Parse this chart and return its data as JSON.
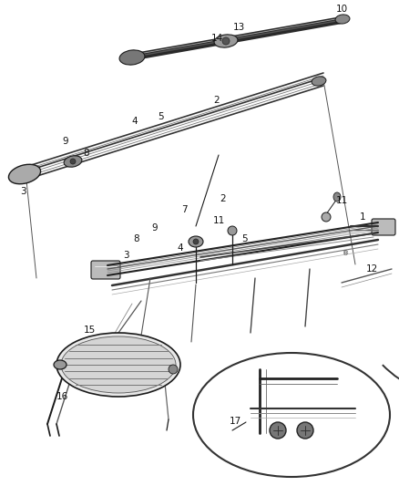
{
  "bg_color": "#ffffff",
  "lc": "#1a1a1a",
  "gray1": "#444444",
  "gray2": "#888888",
  "gray3": "#bbbbbb",
  "gray4": "#dddddd"
}
